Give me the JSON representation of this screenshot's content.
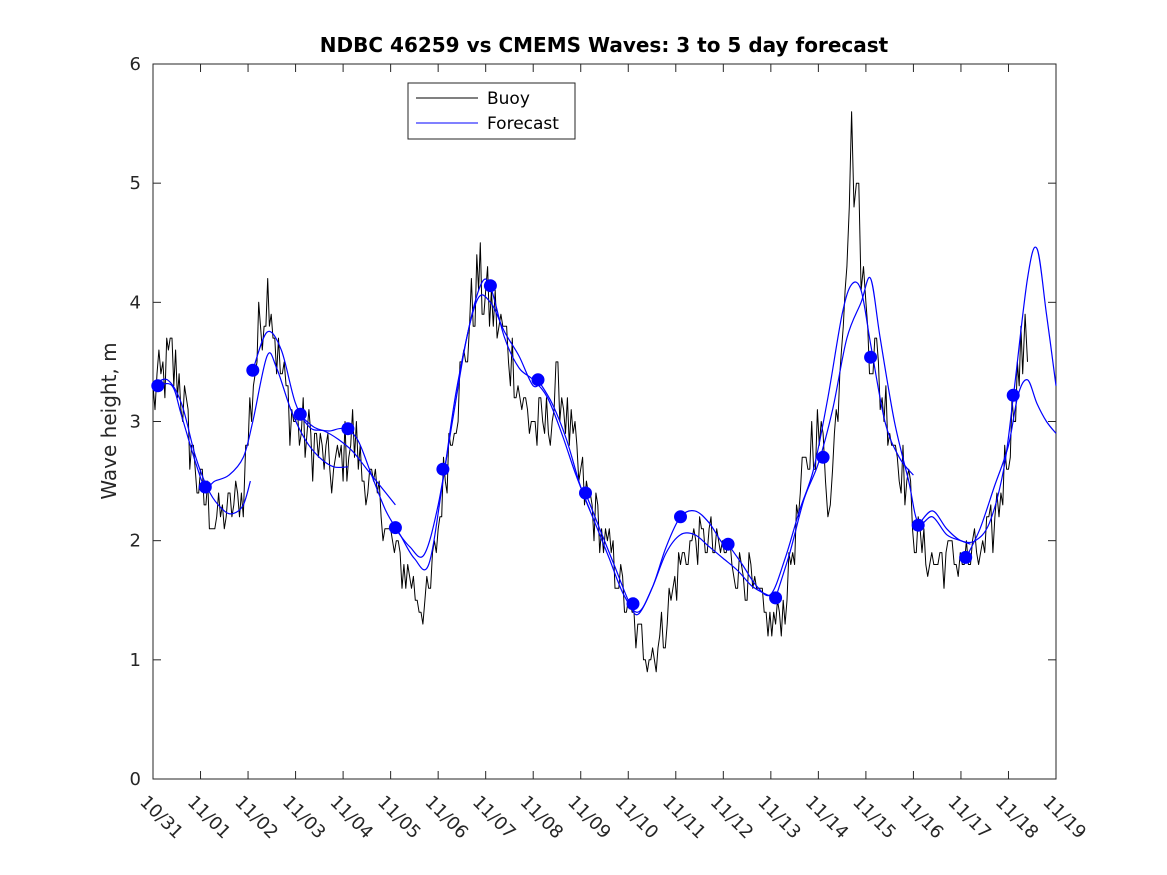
{
  "chart_data": {
    "type": "line",
    "title": "NDBC 46259 vs CMEMS Waves: 3 to 5 day forecast",
    "xlabel": "",
    "ylabel": "Wave height, m",
    "xlim": [
      0,
      19
    ],
    "ylim": [
      0,
      6
    ],
    "grid": false,
    "legend_position": "top-center",
    "x_tick_labels": [
      "10/31",
      "11/01",
      "11/02",
      "11/03",
      "11/04",
      "11/05",
      "11/06",
      "11/07",
      "11/08",
      "11/09",
      "11/10",
      "11/11",
      "11/12",
      "11/13",
      "11/14",
      "11/15",
      "11/16",
      "11/17",
      "11/18",
      "11/19"
    ],
    "y_ticks": [
      0,
      1,
      2,
      3,
      4,
      5,
      6
    ],
    "series": [
      {
        "name": "Buoy",
        "color": "#000000",
        "note": "x in days since 10/31",
        "points": [
          [
            0.0,
            3.2
          ],
          [
            0.25,
            3.4
          ],
          [
            0.4,
            3.5
          ],
          [
            0.55,
            3.3
          ],
          [
            0.7,
            3.0
          ],
          [
            0.85,
            2.7
          ],
          [
            1.0,
            2.4
          ],
          [
            1.15,
            2.3
          ],
          [
            1.3,
            2.2
          ],
          [
            1.5,
            2.2
          ],
          [
            1.7,
            2.3
          ],
          [
            1.9,
            2.4
          ],
          [
            2.0,
            2.9
          ],
          [
            2.15,
            3.5
          ],
          [
            2.3,
            3.9
          ],
          [
            2.45,
            4.2
          ],
          [
            2.6,
            3.6
          ],
          [
            2.8,
            3.2
          ],
          [
            3.0,
            3.0
          ],
          [
            3.2,
            2.9
          ],
          [
            3.4,
            2.8
          ],
          [
            3.6,
            2.7
          ],
          [
            3.8,
            2.6
          ],
          [
            4.0,
            2.7
          ],
          [
            4.2,
            2.9
          ],
          [
            4.4,
            2.6
          ],
          [
            4.6,
            2.4
          ],
          [
            4.8,
            2.3
          ],
          [
            5.0,
            2.0
          ],
          [
            5.2,
            1.8
          ],
          [
            5.4,
            1.7
          ],
          [
            5.6,
            1.5
          ],
          [
            5.8,
            1.5
          ],
          [
            6.0,
            2.1
          ],
          [
            6.15,
            2.6
          ],
          [
            6.3,
            3.0
          ],
          [
            6.5,
            3.4
          ],
          [
            6.7,
            3.9
          ],
          [
            6.85,
            4.2
          ],
          [
            7.0,
            4.0
          ],
          [
            7.2,
            3.9
          ],
          [
            7.4,
            3.7
          ],
          [
            7.6,
            3.5
          ],
          [
            7.8,
            3.1
          ],
          [
            8.0,
            3.0
          ],
          [
            8.2,
            2.9
          ],
          [
            8.4,
            3.1
          ],
          [
            8.6,
            3.3
          ],
          [
            8.8,
            2.8
          ],
          [
            9.0,
            2.5
          ],
          [
            9.2,
            2.3
          ],
          [
            9.4,
            2.1
          ],
          [
            9.6,
            1.9
          ],
          [
            9.8,
            1.7
          ],
          [
            10.0,
            1.4
          ],
          [
            10.2,
            1.2
          ],
          [
            10.4,
            1.1
          ],
          [
            10.55,
            1.05
          ],
          [
            10.7,
            1.2
          ],
          [
            10.9,
            1.5
          ],
          [
            11.1,
            1.8
          ],
          [
            11.3,
            2.0
          ],
          [
            11.5,
            2.0
          ],
          [
            11.7,
            2.0
          ],
          [
            11.9,
            1.9
          ],
          [
            12.1,
            1.9
          ],
          [
            12.3,
            1.8
          ],
          [
            12.5,
            1.7
          ],
          [
            12.7,
            1.5
          ],
          [
            12.9,
            1.3
          ],
          [
            13.1,
            1.3
          ],
          [
            13.3,
            1.5
          ],
          [
            13.5,
            2.0
          ],
          [
            13.7,
            2.5
          ],
          [
            13.9,
            2.9
          ],
          [
            14.1,
            2.8
          ],
          [
            14.2,
            2.4
          ],
          [
            14.3,
            2.6
          ],
          [
            14.45,
            3.5
          ],
          [
            14.6,
            4.6
          ],
          [
            14.7,
            5.3
          ],
          [
            14.8,
            5.0
          ],
          [
            14.9,
            4.4
          ],
          [
            15.0,
            3.9
          ],
          [
            15.15,
            3.6
          ],
          [
            15.3,
            3.3
          ],
          [
            15.5,
            3.0
          ],
          [
            15.7,
            2.7
          ],
          [
            15.9,
            2.4
          ],
          [
            16.1,
            2.0
          ],
          [
            16.3,
            1.85
          ],
          [
            16.6,
            1.85
          ],
          [
            16.9,
            1.85
          ],
          [
            17.2,
            1.85
          ],
          [
            17.5,
            1.9
          ],
          [
            17.8,
            2.3
          ],
          [
            18.0,
            2.8
          ],
          [
            18.15,
            3.3
          ],
          [
            18.3,
            3.6
          ],
          [
            18.4,
            3.5
          ]
        ]
      },
      {
        "name": "Forecast",
        "color": "#0000ff",
        "note": "multiple forecast runs",
        "runs": [
          [
            [
              0.0,
              3.3
            ],
            [
              0.3,
              3.35
            ],
            [
              0.6,
              3.15
            ],
            [
              0.9,
              2.7
            ],
            [
              1.2,
              2.4
            ],
            [
              1.5,
              2.25
            ],
            [
              1.7,
              2.23
            ],
            [
              1.9,
              2.3
            ],
            [
              2.05,
              2.5
            ]
          ],
          [
            [
              0.1,
              3.3
            ],
            [
              0.4,
              3.3
            ],
            [
              0.6,
              3.05
            ],
            [
              0.9,
              2.65
            ],
            [
              1.1,
              2.45
            ],
            [
              1.3,
              2.5
            ],
            [
              1.6,
              2.55
            ],
            [
              1.9,
              2.7
            ],
            [
              2.1,
              3.0
            ],
            [
              2.4,
              3.55
            ],
            [
              2.6,
              3.45
            ],
            [
              2.9,
              3.1
            ],
            [
              3.2,
              2.85
            ],
            [
              3.5,
              2.7
            ],
            [
              3.8,
              2.62
            ],
            [
              4.1,
              2.62
            ]
          ],
          [
            [
              2.1,
              3.43
            ],
            [
              2.4,
              3.75
            ],
            [
              2.7,
              3.6
            ],
            [
              3.0,
              3.15
            ],
            [
              3.3,
              2.95
            ],
            [
              3.6,
              2.92
            ],
            [
              3.9,
              2.85
            ],
            [
              4.2,
              2.75
            ],
            [
              4.5,
              2.6
            ],
            [
              4.8,
              2.45
            ],
            [
              5.1,
              2.3
            ]
          ],
          [
            [
              3.1,
              3.05
            ],
            [
              3.4,
              2.95
            ],
            [
              3.7,
              2.92
            ],
            [
              4.0,
              2.94
            ],
            [
              4.3,
              2.85
            ],
            [
              4.6,
              2.55
            ],
            [
              4.9,
              2.25
            ],
            [
              5.2,
              2.05
            ],
            [
              5.5,
              1.85
            ],
            [
              5.8,
              1.8
            ],
            [
              6.1,
              2.5
            ],
            [
              6.4,
              3.3
            ],
            [
              6.8,
              4.0
            ],
            [
              7.1,
              4.0
            ],
            [
              7.4,
              3.75
            ],
            [
              7.7,
              3.55
            ],
            [
              8.0,
              3.3
            ],
            [
              8.2,
              3.35
            ]
          ],
          [
            [
              5.1,
              2.1
            ],
            [
              5.4,
              1.95
            ],
            [
              5.7,
              1.88
            ],
            [
              6.0,
              2.3
            ],
            [
              6.3,
              3.0
            ],
            [
              6.6,
              3.7
            ],
            [
              6.9,
              4.15
            ],
            [
              7.1,
              4.13
            ],
            [
              7.4,
              3.7
            ],
            [
              7.7,
              3.45
            ],
            [
              8.0,
              3.35
            ],
            [
              8.3,
              3.2
            ],
            [
              8.6,
              2.9
            ],
            [
              8.9,
              2.55
            ],
            [
              9.2,
              2.25
            ]
          ],
          [
            [
              8.1,
              3.35
            ],
            [
              8.4,
              3.15
            ],
            [
              8.7,
              2.85
            ],
            [
              9.0,
              2.45
            ],
            [
              9.3,
              2.15
            ],
            [
              9.6,
              1.85
            ],
            [
              9.9,
              1.55
            ],
            [
              10.2,
              1.4
            ],
            [
              10.5,
              1.6
            ],
            [
              10.8,
              1.95
            ],
            [
              11.1,
              2.2
            ],
            [
              11.4,
              2.25
            ],
            [
              11.7,
              2.15
            ],
            [
              12.0,
              1.97
            ],
            [
              12.2,
              1.95
            ]
          ],
          [
            [
              9.1,
              2.4
            ],
            [
              9.4,
              2.1
            ],
            [
              9.7,
              1.8
            ],
            [
              10.0,
              1.5
            ],
            [
              10.2,
              1.38
            ],
            [
              10.5,
              1.6
            ],
            [
              10.8,
              1.9
            ],
            [
              11.1,
              2.05
            ],
            [
              11.4,
              2.05
            ],
            [
              11.7,
              1.95
            ],
            [
              12.0,
              1.85
            ],
            [
              12.3,
              1.75
            ],
            [
              12.6,
              1.62
            ],
            [
              12.9,
              1.55
            ],
            [
              13.1,
              1.52
            ]
          ],
          [
            [
              12.1,
              1.97
            ],
            [
              12.4,
              1.8
            ],
            [
              12.7,
              1.62
            ],
            [
              13.0,
              1.55
            ],
            [
              13.3,
              1.85
            ],
            [
              13.6,
              2.25
            ],
            [
              13.9,
              2.6
            ],
            [
              14.2,
              3.2
            ],
            [
              14.5,
              3.9
            ],
            [
              14.7,
              4.15
            ],
            [
              14.9,
              4.1
            ],
            [
              15.1,
              3.65
            ],
            [
              15.4,
              3.0
            ],
            [
              15.7,
              2.7
            ],
            [
              16.0,
              2.55
            ]
          ],
          [
            [
              13.1,
              1.52
            ],
            [
              13.4,
              1.9
            ],
            [
              13.7,
              2.35
            ],
            [
              14.0,
              2.65
            ],
            [
              14.3,
              3.1
            ],
            [
              14.6,
              3.7
            ],
            [
              14.9,
              4.0
            ],
            [
              15.1,
              4.2
            ],
            [
              15.3,
              3.7
            ],
            [
              15.6,
              3.0
            ],
            [
              15.9,
              2.5
            ],
            [
              16.1,
              2.15
            ],
            [
              16.4,
              2.2
            ],
            [
              16.7,
              2.05
            ],
            [
              17.0,
              2.0
            ],
            [
              17.2,
              1.97
            ]
          ],
          [
            [
              16.1,
              2.13
            ],
            [
              16.4,
              2.25
            ],
            [
              16.7,
              2.1
            ],
            [
              17.0,
              2.0
            ],
            [
              17.3,
              2.0
            ],
            [
              17.6,
              2.15
            ],
            [
              17.9,
              2.6
            ],
            [
              18.1,
              3.2
            ],
            [
              18.4,
              4.2
            ],
            [
              18.6,
              4.45
            ],
            [
              18.8,
              3.9
            ],
            [
              19.0,
              3.3
            ]
          ],
          [
            [
              17.1,
              1.85
            ],
            [
              17.4,
              2.1
            ],
            [
              17.7,
              2.45
            ],
            [
              18.0,
              2.8
            ],
            [
              18.2,
              3.22
            ],
            [
              18.4,
              3.35
            ],
            [
              18.6,
              3.15
            ],
            [
              18.8,
              3.0
            ],
            [
              19.0,
              2.9
            ]
          ]
        ]
      }
    ],
    "forecast_markers": [
      [
        0.1,
        3.3
      ],
      [
        1.1,
        2.45
      ],
      [
        2.1,
        3.43
      ],
      [
        3.1,
        3.06
      ],
      [
        4.1,
        2.94
      ],
      [
        5.1,
        2.11
      ],
      [
        6.1,
        2.6
      ],
      [
        7.1,
        4.14
      ],
      [
        8.1,
        3.35
      ],
      [
        9.1,
        2.4
      ],
      [
        10.1,
        1.47
      ],
      [
        11.1,
        2.2
      ],
      [
        12.1,
        1.97
      ],
      [
        13.1,
        1.52
      ],
      [
        14.1,
        2.7
      ],
      [
        15.1,
        3.54
      ],
      [
        16.1,
        2.13
      ],
      [
        17.1,
        1.86
      ],
      [
        18.1,
        3.22
      ]
    ],
    "legend": {
      "items": [
        "Buoy",
        "Forecast"
      ]
    },
    "colors": {
      "buoy": "#000000",
      "forecast": "#0000ff",
      "axes": "#262626"
    }
  }
}
